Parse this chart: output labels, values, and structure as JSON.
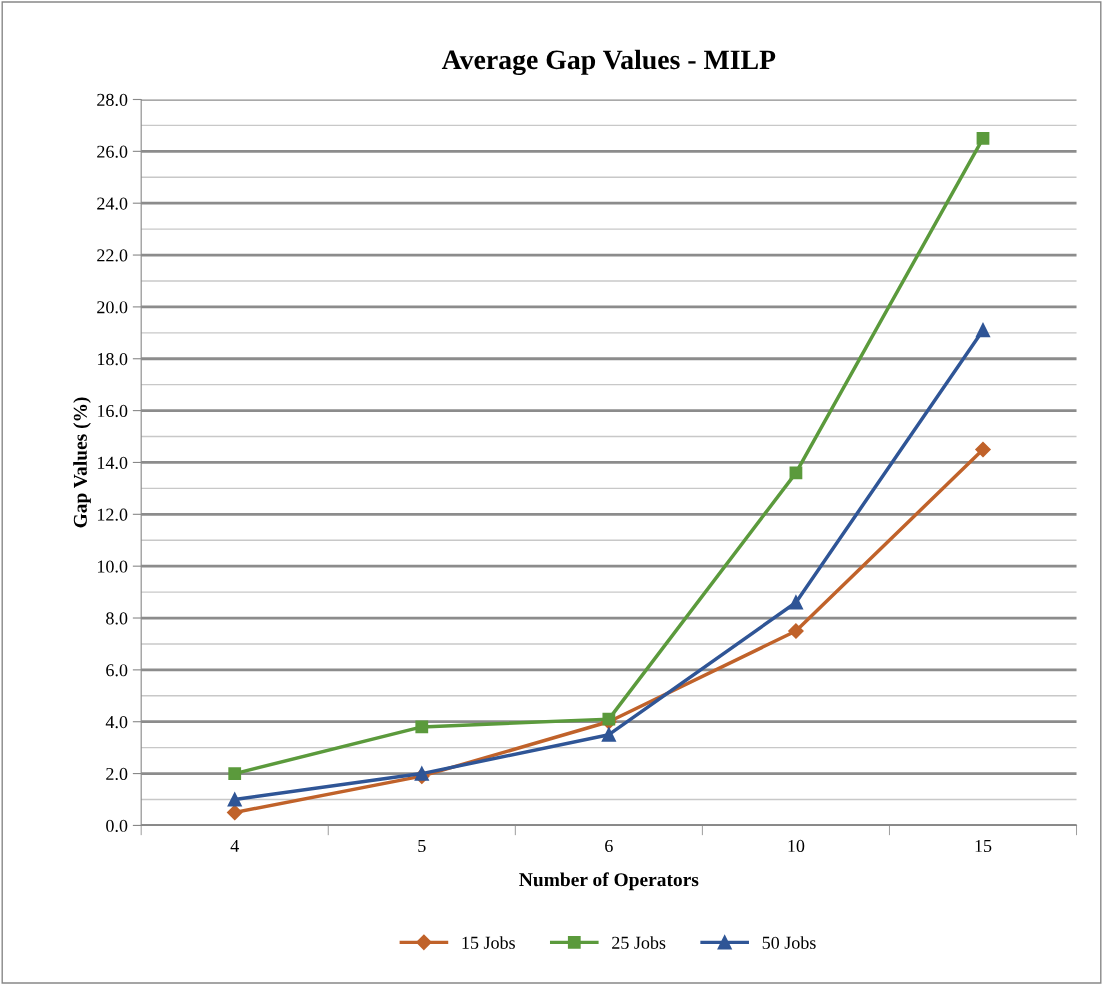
{
  "chart_data": {
    "type": "line",
    "title": "Average Gap Values - MILP",
    "xlabel": "Number of Operators",
    "ylabel": "Gap Values (%)",
    "categories": [
      "4",
      "5",
      "6",
      "10",
      "15"
    ],
    "series": [
      {
        "name": "15 Jobs",
        "color": "#c0622a",
        "marker": "diamond",
        "values": [
          0.5,
          1.9,
          4.0,
          7.5,
          14.5
        ]
      },
      {
        "name": "25 Jobs",
        "color": "#5b9a3c",
        "marker": "square",
        "values": [
          2.0,
          3.8,
          4.1,
          13.6,
          26.5
        ]
      },
      {
        "name": "50 Jobs",
        "color": "#2f5596",
        "marker": "triangle",
        "values": [
          1.0,
          2.0,
          3.5,
          8.6,
          19.1
        ]
      }
    ],
    "ylim": [
      0,
      28
    ],
    "yticks": [
      {
        "value": 0,
        "label": "0.0"
      },
      {
        "value": 1,
        "label": null
      },
      {
        "value": 2,
        "label": "2.0"
      },
      {
        "value": 3,
        "label": null
      },
      {
        "value": 4,
        "label": "4.0"
      },
      {
        "value": 5,
        "label": null
      },
      {
        "value": 6,
        "label": "6.0"
      },
      {
        "value": 7,
        "label": null
      },
      {
        "value": 8,
        "label": "8.0"
      },
      {
        "value": 9,
        "label": null
      },
      {
        "value": 10,
        "label": "10.0"
      },
      {
        "value": 11,
        "label": null
      },
      {
        "value": 12,
        "label": "12.0"
      },
      {
        "value": 13,
        "label": null
      },
      {
        "value": 14,
        "label": "14.0"
      },
      {
        "value": 15,
        "label": null
      },
      {
        "value": 16,
        "label": "16.0"
      },
      {
        "value": 17,
        "label": null
      },
      {
        "value": 18,
        "label": "18.0"
      },
      {
        "value": 19,
        "label": null
      },
      {
        "value": 20,
        "label": "20.0"
      },
      {
        "value": 21,
        "label": null
      },
      {
        "value": 22,
        "label": "22.0"
      },
      {
        "value": 23,
        "label": null
      },
      {
        "value": 24,
        "label": "24.0"
      },
      {
        "value": 25,
        "label": null
      },
      {
        "value": 26,
        "label": "26.0"
      },
      {
        "value": 27,
        "label": null
      },
      {
        "value": 28,
        "label": "28.0"
      }
    ],
    "grid": "y",
    "legend": "bottom",
    "line_style": "solid"
  }
}
